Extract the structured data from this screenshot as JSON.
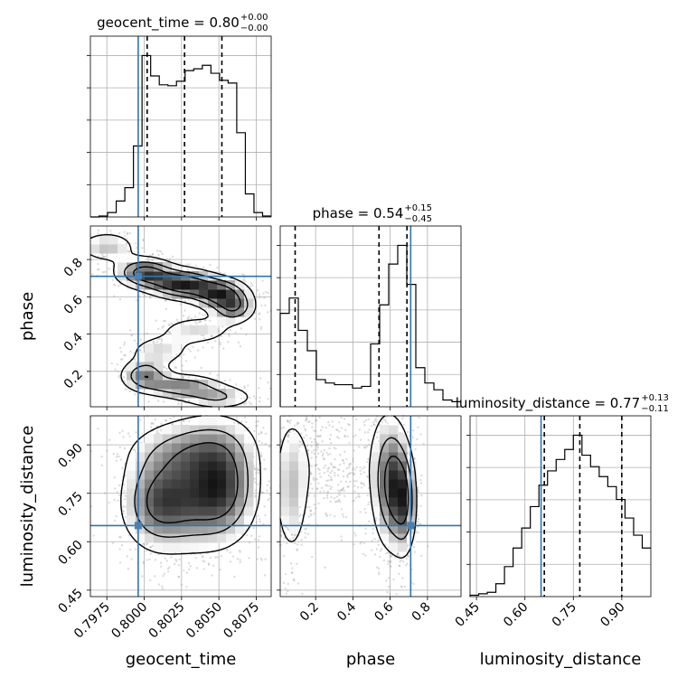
{
  "chart_data": {
    "type": "corner",
    "parameters": [
      "geocent_time",
      "phase",
      "luminosity_distance"
    ],
    "axis_labels": {
      "geocent_time": "geocent_time",
      "phase": "phase",
      "luminosity_distance": "luminosity_distance"
    },
    "titles": [
      {
        "param": "geocent_time",
        "label": "geocent_time = ",
        "median": "0.80",
        "plus": "+0.00",
        "minus": "−0.00"
      },
      {
        "param": "phase",
        "label": "phase = ",
        "median": "0.54",
        "plus": "+0.15",
        "minus": "−0.45"
      },
      {
        "param": "luminosity_distance",
        "label": "luminosity_distance = ",
        "median": "0.77",
        "plus": "+0.13",
        "minus": "−0.11"
      }
    ],
    "ranges": {
      "geocent_time": [
        0.7964,
        0.8085
      ],
      "phase": [
        0.01,
        0.98
      ],
      "luminosity_distance": [
        0.43,
        0.99
      ]
    },
    "ticks": {
      "geocent_time": {
        "values": [
          0.7975,
          0.8,
          0.8025,
          0.805,
          0.8075
        ],
        "labels": [
          "0.7975",
          "0.8000",
          "0.8025",
          "0.8050",
          "0.8075"
        ]
      },
      "phase": {
        "values": [
          0.2,
          0.4,
          0.6,
          0.8
        ],
        "labels": [
          "0.2",
          "0.4",
          "0.6",
          "0.8"
        ]
      },
      "luminosity_distance": {
        "values": [
          0.45,
          0.6,
          0.75,
          0.9
        ],
        "labels": [
          "0.45",
          "0.60",
          "0.75",
          "0.90"
        ]
      }
    },
    "truth": {
      "geocent_time": 0.7996,
      "phase": 0.71,
      "luminosity_distance": 0.65
    },
    "quantiles": {
      "geocent_time": [
        0.8002,
        0.8027,
        0.8052
      ],
      "phase": [
        0.09,
        0.54,
        0.69
      ],
      "luminosity_distance": [
        0.66,
        0.77,
        0.9
      ]
    },
    "histograms": {
      "geocent_time": [
        0,
        1,
        5,
        18,
        33,
        80,
        182,
        159,
        149,
        148,
        153,
        165,
        167,
        171,
        162,
        154,
        151,
        95,
        26,
        5,
        1
      ],
      "phase": [
        55,
        64,
        45,
        33,
        16,
        14,
        13,
        13,
        11,
        12,
        37,
        60,
        84,
        95,
        72,
        23,
        14,
        10,
        4,
        3
      ],
      "luminosity_distance": [
        1,
        2,
        3,
        9,
        21,
        34,
        48,
        63,
        78,
        88,
        96,
        103,
        113,
        99,
        91,
        84,
        77,
        68,
        55,
        43,
        34
      ]
    },
    "scatter_grid": "on",
    "grid": true
  }
}
